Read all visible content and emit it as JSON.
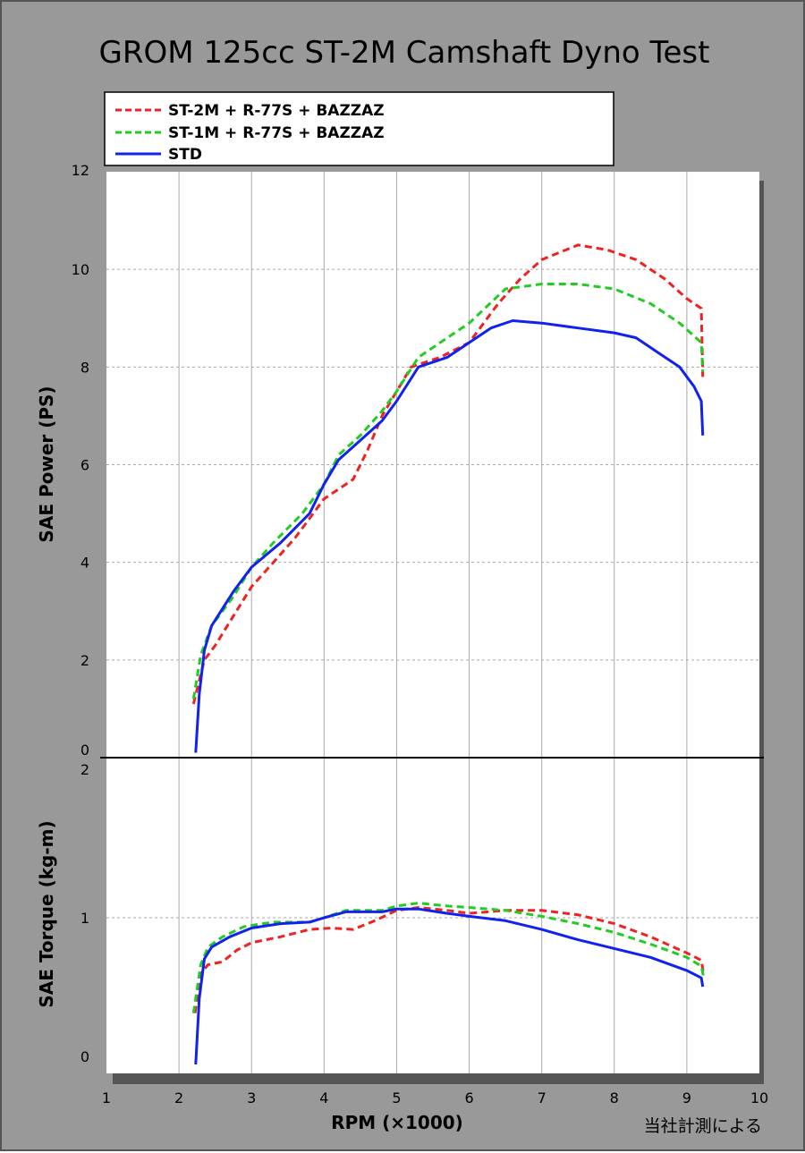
{
  "chart_data": {
    "type": "line",
    "title": "GROM 125cc ST-2M Camshaft Dyno Test",
    "xlabel": "RPM (×1000)",
    "note": "当社計測による",
    "xlim": [
      1,
      10
    ],
    "x_ticks": [
      "1",
      "2",
      "3",
      "4",
      "5",
      "6",
      "7",
      "8",
      "9",
      "10"
    ],
    "grid": true,
    "legend_position": "top-left",
    "colors": {
      "background": "#999999",
      "plot": "#ffffff",
      "shadow": "#555555",
      "grid": "#aaaaaa"
    },
    "legend": [
      {
        "label": "ST-2M + R-77S + BAZZAZ",
        "color": "#ee2222",
        "dash": "dashed"
      },
      {
        "label": "ST-1M + R-77S + BAZZAZ",
        "color": "#22cc22",
        "dash": "dashed"
      },
      {
        "label": "STD",
        "color": "#1122ee",
        "dash": "solid"
      }
    ],
    "panels": [
      {
        "name": "power",
        "ylabel": "SAE Power (PS)",
        "ylim": [
          0,
          12
        ],
        "y_ticks": [
          "0",
          "2",
          "4",
          "6",
          "8",
          "10",
          "12"
        ],
        "series": [
          {
            "name": "ST-2M + R-77S + BAZZAZ",
            "points": [
              [
                2.2,
                1.1
              ],
              [
                2.35,
                2.0
              ],
              [
                2.5,
                2.3
              ],
              [
                2.75,
                2.9
              ],
              [
                3.0,
                3.5
              ],
              [
                3.3,
                4.0
              ],
              [
                3.6,
                4.5
              ],
              [
                4.0,
                5.3
              ],
              [
                4.2,
                5.5
              ],
              [
                4.4,
                5.7
              ],
              [
                4.6,
                6.3
              ],
              [
                4.8,
                7.0
              ],
              [
                5.0,
                7.5
              ],
              [
                5.2,
                8.0
              ],
              [
                5.6,
                8.2
              ],
              [
                6.0,
                8.5
              ],
              [
                6.4,
                9.3
              ],
              [
                6.7,
                9.8
              ],
              [
                7.0,
                10.2
              ],
              [
                7.5,
                10.5
              ],
              [
                7.9,
                10.4
              ],
              [
                8.3,
                10.2
              ],
              [
                8.7,
                9.8
              ],
              [
                9.0,
                9.4
              ],
              [
                9.2,
                9.2
              ],
              [
                9.22,
                7.8
              ]
            ]
          },
          {
            "name": "ST-1M + R-77S + BAZZAZ",
            "points": [
              [
                2.2,
                1.2
              ],
              [
                2.3,
                2.1
              ],
              [
                2.45,
                2.7
              ],
              [
                2.75,
                3.3
              ],
              [
                3.0,
                3.9
              ],
              [
                3.3,
                4.4
              ],
              [
                3.7,
                5.0
              ],
              [
                4.0,
                5.6
              ],
              [
                4.2,
                6.2
              ],
              [
                4.5,
                6.6
              ],
              [
                4.8,
                7.1
              ],
              [
                5.0,
                7.5
              ],
              [
                5.3,
                8.2
              ],
              [
                5.7,
                8.6
              ],
              [
                6.0,
                8.9
              ],
              [
                6.5,
                9.6
              ],
              [
                7.0,
                9.7
              ],
              [
                7.5,
                9.7
              ],
              [
                8.0,
                9.6
              ],
              [
                8.5,
                9.3
              ],
              [
                8.9,
                8.9
              ],
              [
                9.2,
                8.5
              ],
              [
                9.22,
                7.9
              ]
            ]
          },
          {
            "name": "STD",
            "points": [
              [
                2.23,
                0.1
              ],
              [
                2.28,
                1.3
              ],
              [
                2.35,
                2.2
              ],
              [
                2.45,
                2.7
              ],
              [
                2.75,
                3.4
              ],
              [
                3.0,
                3.9
              ],
              [
                3.4,
                4.4
              ],
              [
                3.8,
                5.0
              ],
              [
                4.0,
                5.6
              ],
              [
                4.2,
                6.1
              ],
              [
                4.5,
                6.5
              ],
              [
                4.8,
                6.9
              ],
              [
                5.0,
                7.3
              ],
              [
                5.3,
                8.0
              ],
              [
                5.7,
                8.2
              ],
              [
                6.0,
                8.5
              ],
              [
                6.3,
                8.8
              ],
              [
                6.6,
                8.95
              ],
              [
                7.0,
                8.9
              ],
              [
                7.5,
                8.8
              ],
              [
                8.0,
                8.7
              ],
              [
                8.3,
                8.6
              ],
              [
                8.6,
                8.3
              ],
              [
                8.9,
                8.0
              ],
              [
                9.1,
                7.6
              ],
              [
                9.2,
                7.3
              ],
              [
                9.22,
                6.6
              ]
            ]
          }
        ]
      },
      {
        "name": "torque",
        "ylabel": "SAE Torque (kg-m)",
        "ylim": [
          0,
          2
        ],
        "y_ticks": [
          "0",
          "1",
          "2"
        ],
        "series": [
          {
            "name": "ST-2M + R-77S + BAZZAZ",
            "points": [
              [
                2.22,
                0.35
              ],
              [
                2.3,
                0.62
              ],
              [
                2.4,
                0.68
              ],
              [
                2.6,
                0.7
              ],
              [
                2.8,
                0.78
              ],
              [
                3.0,
                0.83
              ],
              [
                3.4,
                0.87
              ],
              [
                3.8,
                0.92
              ],
              [
                4.1,
                0.93
              ],
              [
                4.4,
                0.92
              ],
              [
                4.7,
                0.98
              ],
              [
                5.0,
                1.05
              ],
              [
                5.3,
                1.07
              ],
              [
                5.7,
                1.05
              ],
              [
                6.0,
                1.03
              ],
              [
                6.5,
                1.05
              ],
              [
                7.0,
                1.05
              ],
              [
                7.5,
                1.02
              ],
              [
                8.0,
                0.96
              ],
              [
                8.5,
                0.87
              ],
              [
                9.0,
                0.76
              ],
              [
                9.2,
                0.71
              ],
              [
                9.23,
                0.62
              ]
            ]
          },
          {
            "name": "ST-1M + R-77S + BAZZAZ",
            "points": [
              [
                2.2,
                0.35
              ],
              [
                2.3,
                0.68
              ],
              [
                2.4,
                0.8
              ],
              [
                2.6,
                0.87
              ],
              [
                2.9,
                0.94
              ],
              [
                3.3,
                0.97
              ],
              [
                3.8,
                0.97
              ],
              [
                4.0,
                1.0
              ],
              [
                4.3,
                1.05
              ],
              [
                4.8,
                1.05
              ],
              [
                5.0,
                1.08
              ],
              [
                5.3,
                1.1
              ],
              [
                5.7,
                1.08
              ],
              [
                6.0,
                1.07
              ],
              [
                6.5,
                1.05
              ],
              [
                7.0,
                1.01
              ],
              [
                7.5,
                0.96
              ],
              [
                8.0,
                0.9
              ],
              [
                8.5,
                0.82
              ],
              [
                9.0,
                0.73
              ],
              [
                9.2,
                0.67
              ],
              [
                9.23,
                0.6
              ]
            ]
          },
          {
            "name": "STD",
            "points": [
              [
                2.23,
                0.0
              ],
              [
                2.28,
                0.45
              ],
              [
                2.35,
                0.72
              ],
              [
                2.45,
                0.8
              ],
              [
                2.7,
                0.87
              ],
              [
                3.0,
                0.93
              ],
              [
                3.4,
                0.96
              ],
              [
                3.8,
                0.97
              ],
              [
                4.0,
                1.0
              ],
              [
                4.3,
                1.04
              ],
              [
                4.8,
                1.04
              ],
              [
                5.0,
                1.06
              ],
              [
                5.3,
                1.06
              ],
              [
                5.7,
                1.03
              ],
              [
                6.0,
                1.01
              ],
              [
                6.5,
                0.98
              ],
              [
                7.0,
                0.92
              ],
              [
                7.5,
                0.85
              ],
              [
                8.0,
                0.79
              ],
              [
                8.5,
                0.73
              ],
              [
                9.0,
                0.64
              ],
              [
                9.2,
                0.59
              ],
              [
                9.22,
                0.53
              ]
            ]
          }
        ]
      }
    ]
  }
}
